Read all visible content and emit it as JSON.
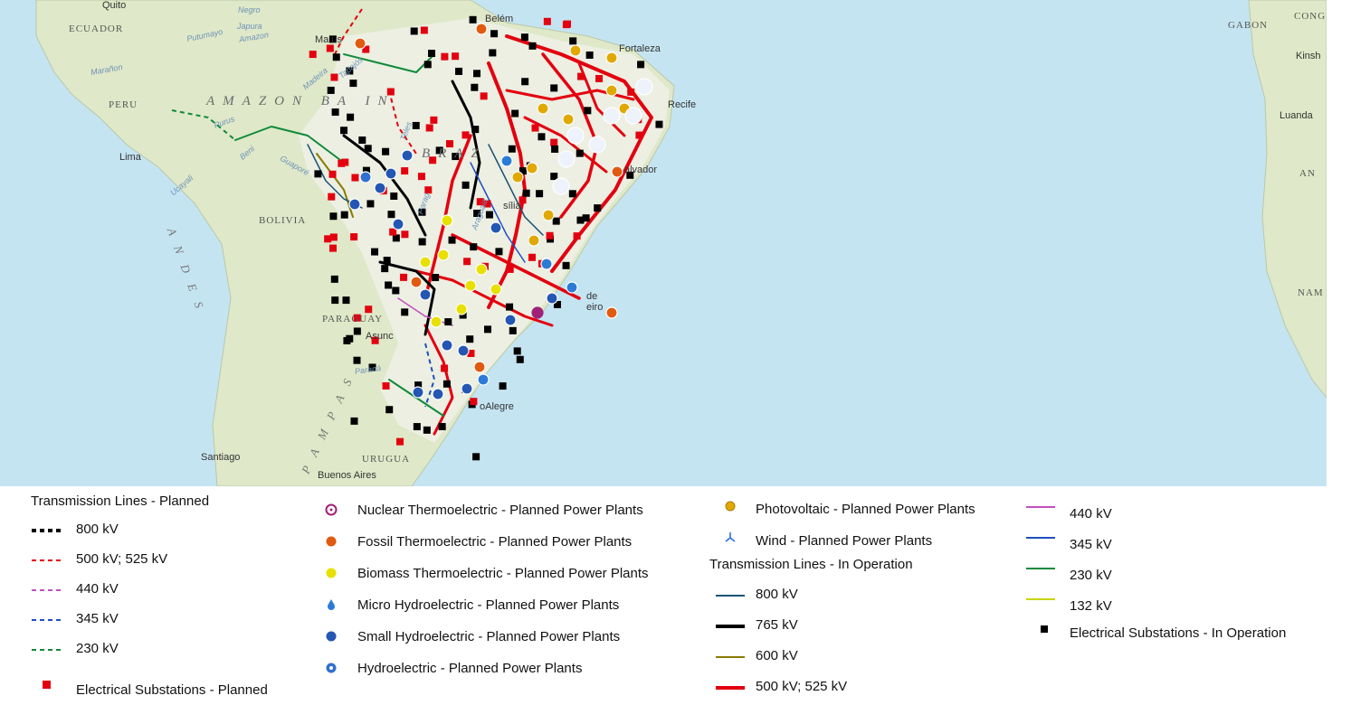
{
  "map": {
    "countries": {
      "ecuador": "ECUADOR",
      "peru": "PERU",
      "bolivia": "BOLIVIA",
      "paraguay": "PARAGUAY",
      "uruguay": "URUGUA",
      "brazil": "BRAZ",
      "gabon": "GABON",
      "congo": "CONG",
      "angola": "AN",
      "namibia": "NAM"
    },
    "regions": {
      "amazon_basin": "AMAZON BA  IN",
      "andes": "A N D E S",
      "pampas": "P A M P A S"
    },
    "cities": {
      "quito": "Quito",
      "lima": "Lima",
      "santiago": "Santiago",
      "buenos_aires": "Buenos Aires",
      "asuncion": "Asunc",
      "belem": "Belém",
      "manaus": "Ma   us",
      "fortaleza": "Fortaleza",
      "recife": "Recife",
      "salvador": "alvador",
      "brasilia": "sília",
      "rio": "de\neiro",
      "porto_alegre": "oAlegre",
      "kinshasa": "Kinsh",
      "luanda": "Luanda"
    },
    "rivers": {
      "negro": "Negro",
      "japura": "Japura",
      "putumayo": "Putumayo",
      "amazon": "Amazon",
      "maranon": "Marañon",
      "madeira": "Madeira",
      "tapajos": "Tapajós",
      "purus": "Purus",
      "beni": "Beni",
      "guapore": "Guaporé",
      "ucayali": "Ucayali",
      "parana": "Paraná",
      "teles": "Teles",
      "araguaia": "Araguaia",
      "parag": "Parag"
    },
    "colors": {
      "ocean": "#c5e4f2",
      "land": "#dfe8c8",
      "brazil_land": "#eeeeea",
      "line_500": "#e3000f",
      "substation_op": "#000000",
      "substation_planned": "#e3000f"
    }
  },
  "legend": {
    "col1": {
      "title": "Transmission Lines - Planned",
      "items": [
        {
          "label": "800 kV",
          "color": "#000000"
        },
        {
          "label": "500 kV; 525 kV",
          "color": "#e3000f"
        },
        {
          "label": "440 kV",
          "color": "#c24fc2"
        },
        {
          "label": "345 kV",
          "color": "#1f4fbf"
        },
        {
          "label": "230 kV",
          "color": "#0f8a3a"
        }
      ],
      "substation_planned": "Electrical Substations - Planned"
    },
    "col2": {
      "items": [
        {
          "label": "Nuclear Thermoelectric - Planned Power Plants",
          "icon": "nuclear-icon"
        },
        {
          "label": "Fossil Thermoelectric - Planned Power Plants",
          "icon": "flame-icon"
        },
        {
          "label": "Biomass Thermoelectric - Planned Power Plants",
          "icon": "biomass-icon"
        },
        {
          "label": "Micro Hydroelectric - Planned Power Plants",
          "icon": "water-drop-icon"
        },
        {
          "label": "Small Hydroelectric - Planned Power Plants",
          "icon": "small-hydro-icon"
        },
        {
          "label": "Hydroelectric - Planned Power Plants",
          "icon": "hydro-icon"
        }
      ]
    },
    "col3": {
      "items": [
        {
          "label": "Photovoltaic - Planned Power Plants",
          "icon": "sun-icon"
        },
        {
          "label": "Wind - Planned Power Plants",
          "icon": "wind-turbine-icon"
        }
      ],
      "title": "Transmission Lines - In Operation",
      "lines": [
        {
          "label": "800 kV",
          "color": "#1a5276"
        },
        {
          "label": "765 kV",
          "color": "#000000"
        },
        {
          "label": "600 kV",
          "color": "#8a7a00"
        },
        {
          "label": "500 kV; 525 kV",
          "color": "#e3000f"
        }
      ]
    },
    "col4": {
      "lines": [
        {
          "label": "440 kV",
          "color": "#c24fc2"
        },
        {
          "label": "345 kV",
          "color": "#1f4fbf"
        },
        {
          "label": "230 kV",
          "color": "#0f8a3a"
        },
        {
          "label": "132 kV",
          "color": "#c9d400"
        }
      ],
      "substation_op": "Electrical Substations - In Operation"
    }
  }
}
